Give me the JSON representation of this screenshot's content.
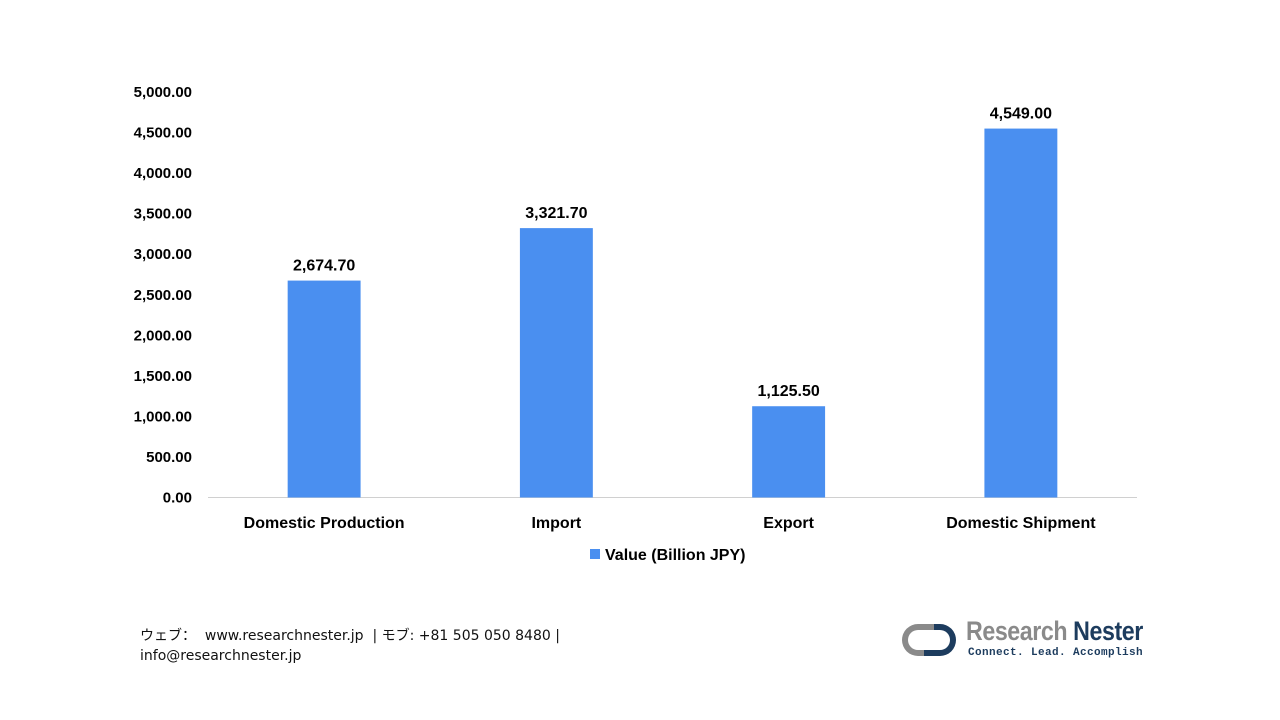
{
  "chart_data": {
    "type": "bar",
    "categories": [
      "Domestic Production",
      "Import",
      "Export",
      "Domestic Shipment"
    ],
    "series": [
      {
        "name": "Value (Billion JPY)",
        "values": [
          2674.7,
          3321.7,
          1125.5,
          4549.0
        ],
        "color": "#4a8ff0"
      }
    ],
    "data_labels": [
      "2,674.70",
      "3,321.70",
      "1,125.50",
      "4,549.00"
    ],
    "yticks": [
      "0.00",
      "500.00",
      "1,000.00",
      "1,500.00",
      "2,000.00",
      "2,500.00",
      "3,000.00",
      "3,500.00",
      "4,000.00",
      "4,500.00",
      "5,000.00"
    ],
    "ylim": [
      0,
      5000
    ],
    "ystep": 500,
    "title": "",
    "xlabel": "",
    "ylabel": "",
    "legend": {
      "position": "bottom",
      "label": "Value (Billion JPY)"
    },
    "grid": false
  },
  "footer": {
    "line1": "ウェブ：  www.researchnester.jp  | モブ: +81 505 050 8480 |",
    "line2": "info@researchnester.jp"
  },
  "logo": {
    "name_part1": "Research",
    "name_part2": "Nester",
    "tagline": "Connect. Lead. Accomplish",
    "colors": {
      "gray": "#8a8a8a",
      "navy": "#1d3c5e"
    }
  }
}
